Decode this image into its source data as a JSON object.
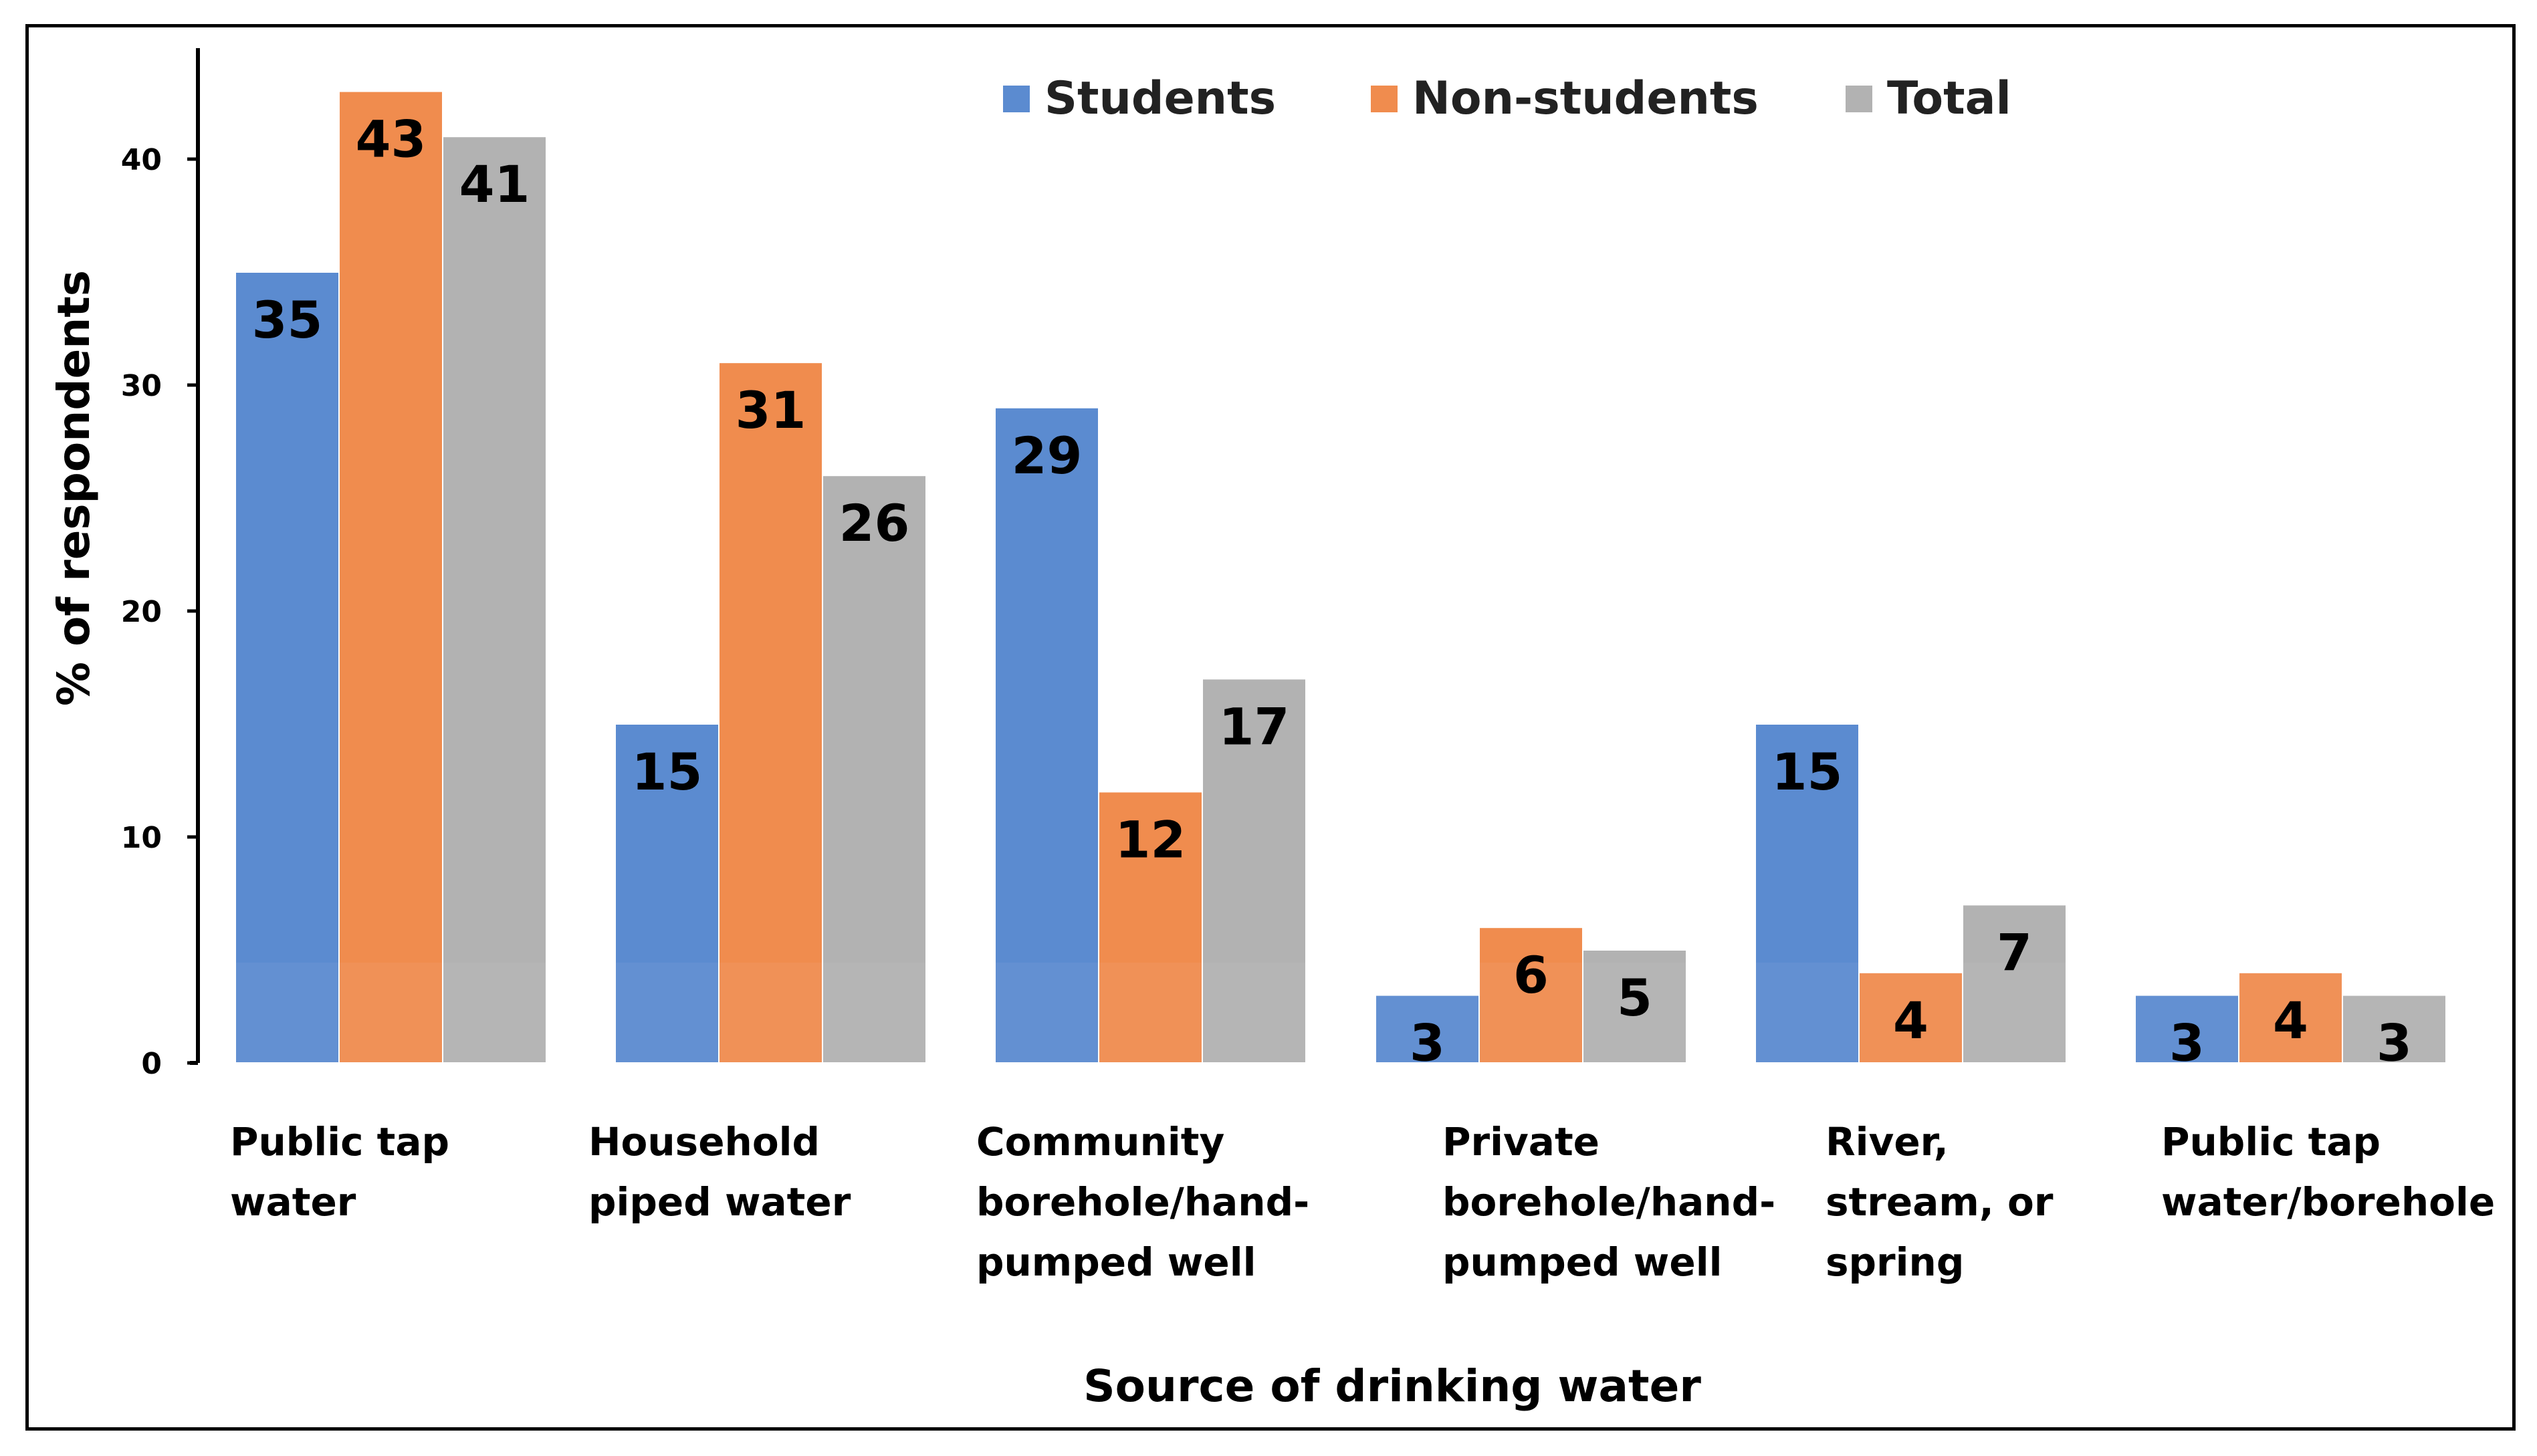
{
  "chart_data": {
    "type": "bar",
    "title": "",
    "xlabel": "Source of drinking water",
    "ylabel": "% of respondents",
    "ylim": [
      0,
      45
    ],
    "yticks": [
      0,
      10,
      20,
      30,
      40
    ],
    "grid": false,
    "legend_position": "top-right",
    "categories": [
      [
        "Public tap",
        "water"
      ],
      [
        "Household",
        "piped water"
      ],
      [
        "Community",
        "borehole/hand-",
        "pumped well"
      ],
      [
        "Private",
        "borehole/hand-",
        "pumped well"
      ],
      [
        "River,",
        "stream, or",
        "spring"
      ],
      [
        "Public tap",
        "water/borehole"
      ]
    ],
    "series": [
      {
        "name": "Students",
        "color": "#5B8BD0",
        "values": [
          35,
          15,
          29,
          3,
          15,
          3
        ]
      },
      {
        "name": "Non-students",
        "color": "#F08C4E",
        "values": [
          43,
          31,
          12,
          6,
          4,
          4
        ]
      },
      {
        "name": "Total",
        "color": "#B2B2B2",
        "values": [
          41,
          26,
          17,
          5,
          7,
          3
        ]
      }
    ]
  }
}
